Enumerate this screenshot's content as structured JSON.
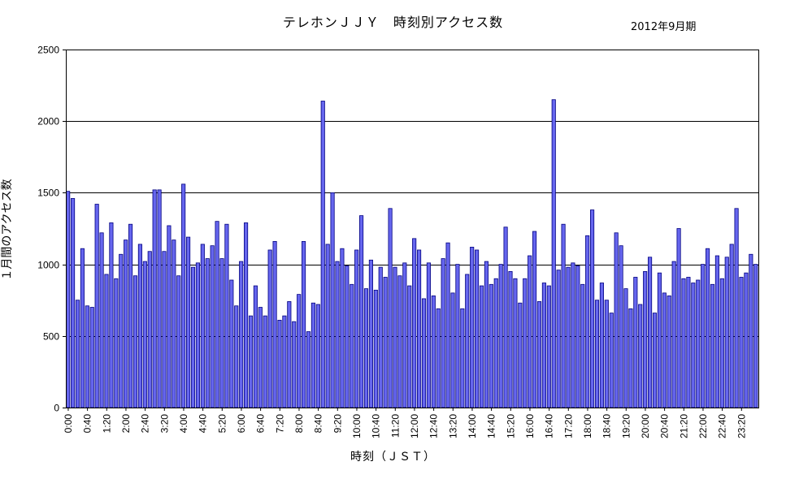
{
  "chart_data": {
    "type": "bar",
    "title": "テレホンＪＪＹ　時刻別アクセス数",
    "subtitle": "2012年9月期",
    "xlabel": "時刻（ＪＳＴ）",
    "ylabel": "１月間のアクセス数",
    "ylim": [
      0,
      2500
    ],
    "yticks": [
      0,
      500,
      1000,
      1500,
      2000,
      2500
    ],
    "grid": true,
    "bar_color": "#6666ee",
    "bar_edge": "#000080",
    "xtick_labels": [
      "0:00",
      "0:40",
      "1:20",
      "2:00",
      "2:40",
      "3:20",
      "4:00",
      "4:40",
      "5:20",
      "6:00",
      "6:40",
      "7:20",
      "8:00",
      "8:40",
      "9:20",
      "10:00",
      "10:40",
      "11:20",
      "12:00",
      "12:40",
      "13:20",
      "14:00",
      "14:40",
      "15:20",
      "16:00",
      "16:40",
      "17:20",
      "18:00",
      "18:40",
      "19:20",
      "20:00",
      "20:40",
      "21:20",
      "22:00",
      "22:40",
      "23:20"
    ],
    "values": [
      1510,
      1460,
      750,
      1110,
      710,
      700,
      1420,
      1220,
      930,
      1290,
      900,
      1070,
      1170,
      1280,
      920,
      1140,
      1020,
      1090,
      1520,
      1520,
      1090,
      1270,
      1170,
      920,
      1560,
      1190,
      980,
      1010,
      1140,
      1040,
      1130,
      1300,
      1040,
      1280,
      890,
      710,
      1020,
      1290,
      640,
      850,
      700,
      640,
      1100,
      1160,
      610,
      640,
      740,
      600,
      790,
      1160,
      530,
      730,
      720,
      2140,
      1140,
      1500,
      1020,
      1110,
      990,
      860,
      1100,
      1340,
      830,
      1030,
      820,
      980,
      910,
      1390,
      980,
      920,
      1010,
      850,
      1180,
      1100,
      760,
      1010,
      780,
      690,
      1040,
      1150,
      800,
      1000,
      690,
      930,
      1120,
      1100,
      850,
      1020,
      860,
      900,
      1000,
      1260,
      950,
      900,
      730,
      900,
      1060,
      1230,
      740,
      870,
      850,
      2150,
      960,
      1280,
      980,
      1010,
      990,
      860,
      1200,
      1380,
      750,
      870,
      750,
      660,
      1220,
      1130,
      830,
      690,
      910,
      720,
      950,
      1050,
      660,
      940,
      800,
      780,
      1020,
      1250,
      900,
      910,
      870,
      890,
      1000,
      1110,
      860,
      1060,
      900,
      1050,
      1140,
      1390,
      910,
      940,
      1070,
      1000
    ]
  }
}
